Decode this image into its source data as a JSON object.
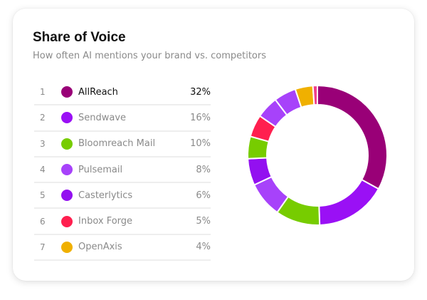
{
  "title": "Share of Voice",
  "subtitle": "How often AI mentions your brand vs. competitors",
  "rows": [
    {
      "rank": "1",
      "name": "AllReach",
      "pct": "32%",
      "color": "#990077"
    },
    {
      "rank": "2",
      "name": "Sendwave",
      "pct": "16%",
      "color": "#9a10f5"
    },
    {
      "rank": "3",
      "name": "Bloomreach Mail",
      "pct": "10%",
      "color": "#77cc00"
    },
    {
      "rank": "4",
      "name": "Pulsemail",
      "pct": "8%",
      "color": "#a742fa"
    },
    {
      "rank": "5",
      "name": "Casterlytics",
      "pct": "6%",
      "color": "#9310f0"
    },
    {
      "rank": "6",
      "name": "Inbox Forge",
      "pct": "5%",
      "color": "#ff1f4f"
    },
    {
      "rank": "7",
      "name": "OpenAxis",
      "pct": "4%",
      "color": "#f0b000"
    }
  ],
  "chart_data": {
    "type": "pie",
    "style": "donut",
    "title": "Share of Voice",
    "segments": [
      {
        "label": "AllReach",
        "value": 32,
        "color": "#990077"
      },
      {
        "label": "Sendwave",
        "value": 16,
        "color": "#9a10f5"
      },
      {
        "label": "Bloomreach Mail",
        "value": 10,
        "color": "#77cc00"
      },
      {
        "label": "Pulsemail",
        "value": 8,
        "color": "#a742fa"
      },
      {
        "label": "Casterlytics",
        "value": 6,
        "color": "#9310f0"
      },
      {
        "label": "",
        "value": 5,
        "color": "#77cc00"
      },
      {
        "label": "Inbox Forge",
        "value": 5,
        "color": "#ff1f4f"
      },
      {
        "label": "",
        "value": 5,
        "color": "#a742fa"
      },
      {
        "label": "",
        "value": 5,
        "color": "#a742fa"
      },
      {
        "label": "OpenAxis",
        "value": 4,
        "color": "#f0b000"
      },
      {
        "label": "",
        "value": 1,
        "color": "#f0408a"
      }
    ]
  }
}
